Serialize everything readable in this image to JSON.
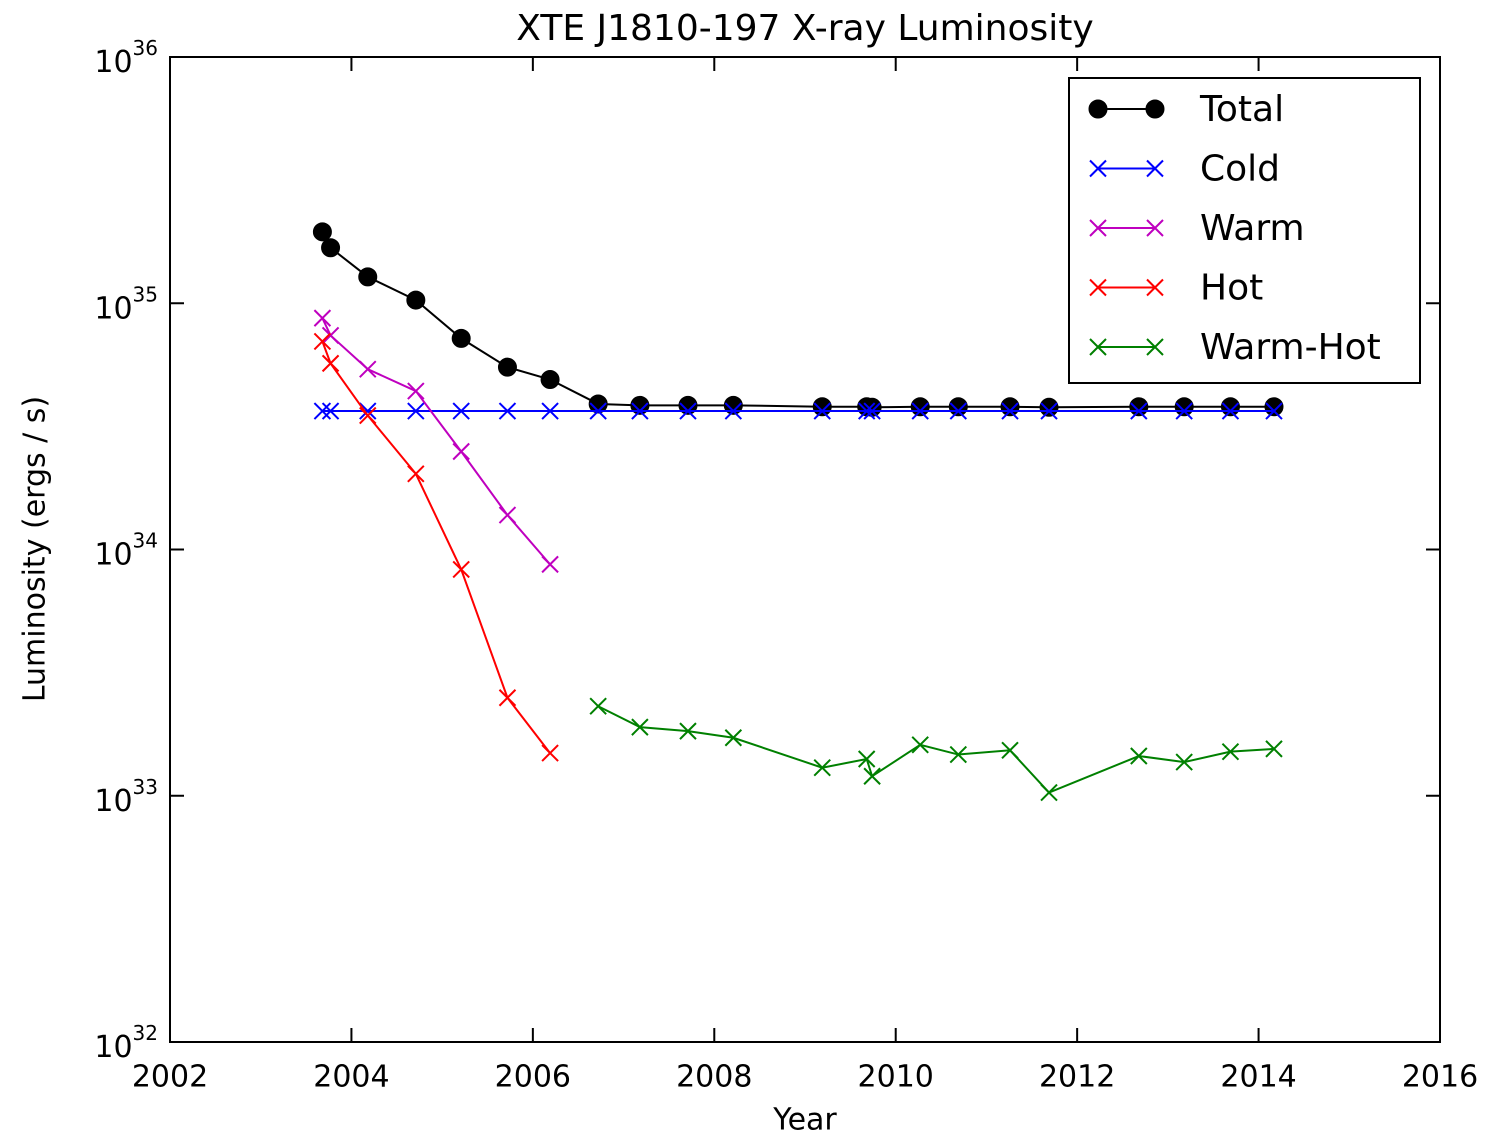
{
  "chart_data": {
    "type": "line",
    "title": "XTE J1810-197 X-ray Luminosity",
    "xlabel": "Year",
    "ylabel": "Luminosity (ergs / s)",
    "ylog": true,
    "legend": "upper right",
    "xlim": [
      2002,
      2016
    ],
    "xticks": [
      2002,
      2004,
      2006,
      2008,
      2010,
      2012,
      2014,
      2016
    ],
    "ylim": [
      1e+32,
      1e+36
    ],
    "yticks": [
      {
        "value": 1e+32,
        "label": "10^32"
      },
      {
        "value": 1e+33,
        "label": "10^33"
      },
      {
        "value": 1e+34,
        "label": "10^34"
      },
      {
        "value": 1e+35,
        "label": "10^35"
      },
      {
        "value": 1e+36,
        "label": "10^36"
      }
    ],
    "x": [
      2003.68,
      2003.77,
      2004.18,
      2004.71,
      2005.21,
      2005.72,
      2006.19,
      2006.72,
      2007.18,
      2007.71,
      2008.21,
      2009.19,
      2009.68,
      2009.74,
      2010.27,
      2010.69,
      2011.26,
      2011.69,
      2012.68,
      2013.18,
      2013.69,
      2014.17
    ],
    "series": [
      {
        "name": "Total",
        "color": "#000000",
        "marker": "o",
        "values": [
          1.95e+35,
          1.68e+35,
          1.28e+35,
          1.03e+35,
          7.2e+34,
          5.5e+34,
          4.9e+34,
          3.9e+34,
          3.85e+34,
          3.85e+34,
          3.85e+34,
          3.8e+34,
          3.8e+34,
          3.78e+34,
          3.8e+34,
          3.8e+34,
          3.8e+34,
          3.78e+34,
          3.8e+34,
          3.8e+34,
          3.8e+34,
          3.8e+34
        ]
      },
      {
        "name": "Cold",
        "color": "#0000ff",
        "marker": "x",
        "values": [
          3.65e+34,
          3.65e+34,
          3.65e+34,
          3.65e+34,
          3.65e+34,
          3.65e+34,
          3.65e+34,
          3.65e+34,
          3.65e+34,
          3.65e+34,
          3.65e+34,
          3.65e+34,
          3.65e+34,
          3.65e+34,
          3.65e+34,
          3.65e+34,
          3.65e+34,
          3.65e+34,
          3.65e+34,
          3.65e+34,
          3.65e+34,
          3.65e+34
        ]
      },
      {
        "name": "Warm",
        "color": "#bf00bf",
        "marker": "x",
        "values": [
          8.7e+34,
          7.4e+34,
          5.4e+34,
          4.4e+34,
          2.5e+34,
          1.38e+34,
          8.7e+33,
          null,
          null,
          null,
          null,
          null,
          null,
          null,
          null,
          null,
          null,
          null,
          null,
          null,
          null,
          null
        ]
      },
      {
        "name": "Hot",
        "color": "#ff0000",
        "marker": "x",
        "values": [
          7e+34,
          5.7e+34,
          3.5e+34,
          2.03e+34,
          8.3e+33,
          2.5e+33,
          1.49e+33,
          null,
          null,
          null,
          null,
          null,
          null,
          null,
          null,
          null,
          null,
          null,
          null,
          null,
          null,
          null
        ]
      },
      {
        "name": "Warm-Hot",
        "color": "#008000",
        "marker": "x",
        "values": [
          null,
          null,
          null,
          null,
          null,
          null,
          null,
          2.31e+33,
          1.9e+33,
          1.83e+33,
          1.72e+33,
          1.3e+33,
          1.41e+33,
          1.2e+33,
          1.61e+33,
          1.47e+33,
          1.53e+33,
          1.03e+33,
          1.45e+33,
          1.37e+33,
          1.51e+33,
          1.55e+33
        ]
      }
    ]
  }
}
